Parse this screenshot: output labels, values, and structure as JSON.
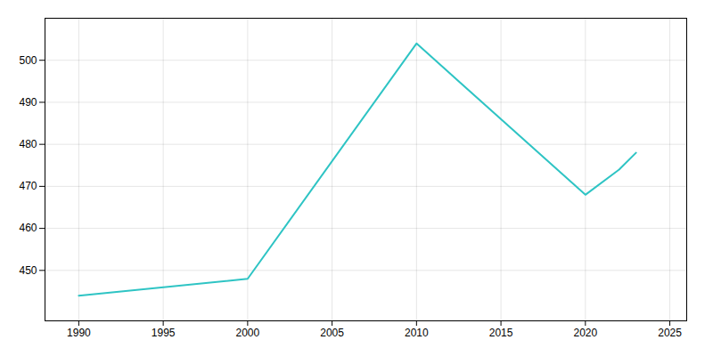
{
  "chart_data": {
    "type": "line",
    "x": [
      1990,
      2000,
      2010,
      2020,
      2022,
      2023
    ],
    "values": [
      444,
      448,
      504,
      468,
      474,
      478
    ],
    "color": "#2EC4C4",
    "xlim": [
      1988,
      2026
    ],
    "ylim": [
      438,
      510
    ],
    "xticks": [
      1990,
      1995,
      2000,
      2005,
      2010,
      2015,
      2020,
      2025
    ],
    "yticks": [
      450,
      460,
      470,
      480,
      490,
      500
    ],
    "grid": true
  }
}
